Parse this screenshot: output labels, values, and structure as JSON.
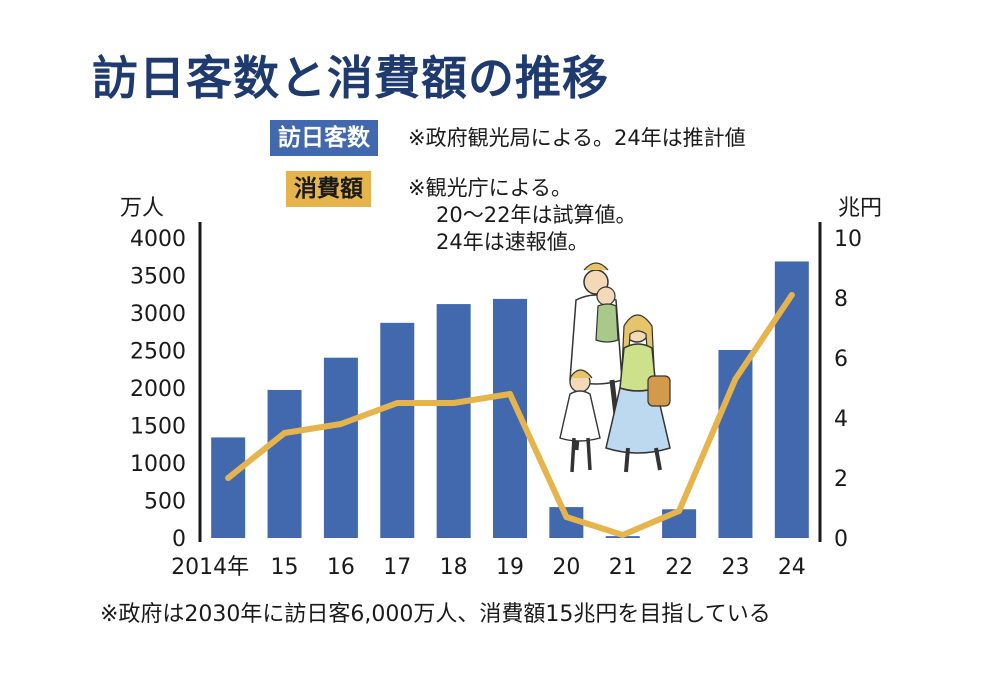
{
  "title": "訪日客数と消費額の推移",
  "legend": {
    "visitors_label": "訪日客数",
    "visitors_note": "※政府観光局による。24年は推計値",
    "spend_label": "消費額",
    "spend_note_1": "※観光庁による。",
    "spend_note_2": "20～22年は試算値。",
    "spend_note_3": "24年は速報値。"
  },
  "footnote": "※政府は2030年に訪日客6,000万人、消費額15兆円を目指している",
  "colors": {
    "bar": "#4268ae",
    "line": "#e5b44c",
    "title": "#1f3a6e"
  },
  "illustration_icon": "family-walking-illustration",
  "chart_data": {
    "type": "bar",
    "categories": [
      "2014年",
      "15",
      "16",
      "17",
      "18",
      "19",
      "20",
      "21",
      "22",
      "23",
      "24"
    ],
    "series": [
      {
        "name": "訪日客数",
        "type": "bar",
        "axis": "left",
        "values": [
          1341,
          1974,
          2404,
          2869,
          3119,
          3188,
          412,
          25,
          383,
          2507,
          3687
        ]
      },
      {
        "name": "消費額",
        "type": "line",
        "axis": "right",
        "values": [
          2.0,
          3.5,
          3.8,
          4.5,
          4.5,
          4.8,
          0.7,
          0.1,
          0.9,
          5.3,
          8.1
        ]
      }
    ],
    "y_left": {
      "unit": "万人",
      "ylim": [
        0,
        4000
      ],
      "ticks": [
        0,
        500,
        1000,
        1500,
        2000,
        2500,
        3000,
        3500,
        4000
      ]
    },
    "y_right": {
      "unit": "兆円",
      "ylim": [
        0,
        10
      ],
      "ticks": [
        0,
        2,
        4,
        6,
        8,
        10
      ]
    },
    "grid": false
  }
}
